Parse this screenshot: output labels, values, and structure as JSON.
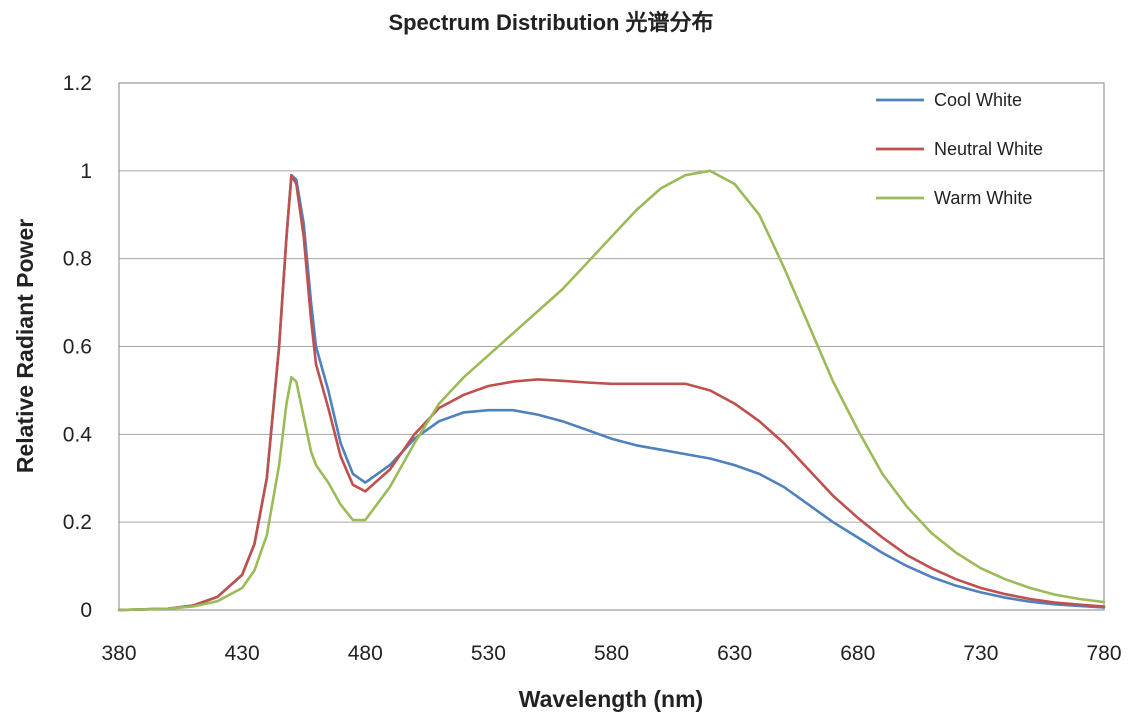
{
  "chart_data": {
    "type": "line",
    "title": "Spectrum Distribution 光谱分布",
    "xlabel": "Wavelength (nm)",
    "ylabel": "Relative Radiant Power",
    "xlim": [
      380,
      780
    ],
    "ylim": [
      0,
      1.2
    ],
    "xticks": [
      "380",
      "430",
      "480",
      "530",
      "580",
      "630",
      "680",
      "730",
      "780"
    ],
    "yticks": [
      "0",
      "0.2",
      "0.4",
      "0.6",
      "0.8",
      "1",
      "1.2"
    ],
    "grid": "horizontal",
    "legend_position": "top-right",
    "series": [
      {
        "name": "Cool White",
        "color": "#4f81bd",
        "x": [
          380,
          400,
          410,
          420,
          430,
          435,
          440,
          445,
          448,
          450,
          452,
          455,
          458,
          460,
          465,
          470,
          475,
          480,
          490,
          500,
          510,
          520,
          530,
          540,
          550,
          560,
          570,
          580,
          590,
          600,
          610,
          620,
          630,
          640,
          650,
          660,
          670,
          680,
          690,
          700,
          710,
          720,
          730,
          740,
          750,
          760,
          770,
          780
        ],
        "y": [
          0.0,
          0.003,
          0.01,
          0.03,
          0.08,
          0.15,
          0.3,
          0.6,
          0.85,
          0.99,
          0.98,
          0.88,
          0.7,
          0.6,
          0.5,
          0.38,
          0.31,
          0.29,
          0.33,
          0.39,
          0.43,
          0.45,
          0.455,
          0.455,
          0.445,
          0.43,
          0.41,
          0.39,
          0.375,
          0.365,
          0.355,
          0.345,
          0.33,
          0.31,
          0.28,
          0.24,
          0.2,
          0.165,
          0.13,
          0.1,
          0.075,
          0.055,
          0.04,
          0.028,
          0.019,
          0.013,
          0.009,
          0.006
        ]
      },
      {
        "name": "Neutral White",
        "color": "#c0504d",
        "x": [
          380,
          400,
          410,
          420,
          430,
          435,
          440,
          445,
          448,
          450,
          452,
          455,
          458,
          460,
          465,
          470,
          475,
          480,
          490,
          500,
          510,
          520,
          530,
          540,
          550,
          560,
          570,
          580,
          590,
          600,
          610,
          620,
          630,
          640,
          650,
          660,
          670,
          680,
          690,
          700,
          710,
          720,
          730,
          740,
          750,
          760,
          770,
          780
        ],
        "y": [
          0.0,
          0.003,
          0.01,
          0.03,
          0.08,
          0.15,
          0.3,
          0.6,
          0.85,
          0.99,
          0.97,
          0.85,
          0.66,
          0.56,
          0.46,
          0.35,
          0.285,
          0.27,
          0.32,
          0.4,
          0.46,
          0.49,
          0.51,
          0.52,
          0.525,
          0.522,
          0.518,
          0.515,
          0.515,
          0.515,
          0.515,
          0.5,
          0.47,
          0.43,
          0.38,
          0.32,
          0.26,
          0.21,
          0.165,
          0.125,
          0.095,
          0.07,
          0.05,
          0.036,
          0.025,
          0.017,
          0.012,
          0.008
        ]
      },
      {
        "name": "Warm White",
        "color": "#9bbb59",
        "x": [
          380,
          400,
          410,
          420,
          430,
          435,
          440,
          445,
          448,
          450,
          452,
          455,
          458,
          460,
          465,
          470,
          475,
          480,
          490,
          500,
          510,
          520,
          530,
          540,
          550,
          560,
          570,
          580,
          590,
          600,
          610,
          620,
          630,
          640,
          650,
          660,
          670,
          680,
          690,
          700,
          710,
          720,
          730,
          740,
          750,
          760,
          770,
          780
        ],
        "y": [
          0.0,
          0.003,
          0.008,
          0.02,
          0.05,
          0.09,
          0.17,
          0.33,
          0.47,
          0.53,
          0.52,
          0.44,
          0.36,
          0.33,
          0.29,
          0.24,
          0.205,
          0.205,
          0.28,
          0.38,
          0.47,
          0.53,
          0.58,
          0.63,
          0.68,
          0.73,
          0.79,
          0.85,
          0.91,
          0.96,
          0.99,
          1.0,
          0.97,
          0.9,
          0.78,
          0.65,
          0.52,
          0.41,
          0.31,
          0.235,
          0.175,
          0.13,
          0.095,
          0.07,
          0.05,
          0.035,
          0.025,
          0.018
        ]
      }
    ]
  }
}
